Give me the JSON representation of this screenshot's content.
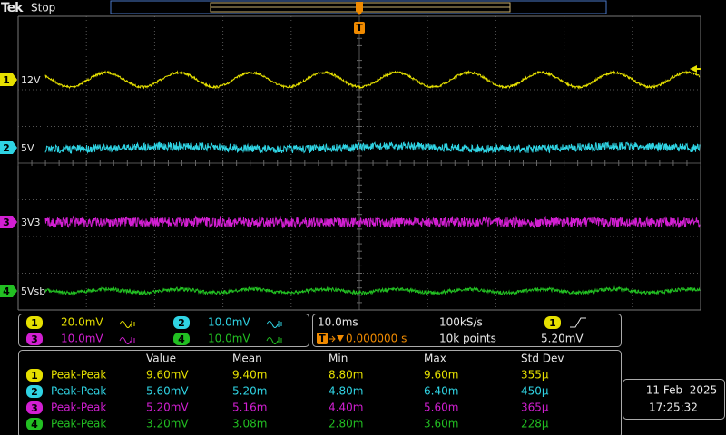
{
  "header": {
    "brand": "Tek",
    "status": "Stop"
  },
  "trigger_marker": "T",
  "channels": [
    {
      "number": "1",
      "label": "12V",
      "scale": "20.0mV",
      "color": "#e6e000"
    },
    {
      "number": "2",
      "label": "5V",
      "scale": "10.0mV",
      "color": "#2fd3e3"
    },
    {
      "number": "3",
      "label": "3V3",
      "scale": "10.0mV",
      "color": "#d21fd2"
    },
    {
      "number": "4",
      "label": "5Vsb",
      "scale": "10.0mV",
      "color": "#22bf22"
    }
  ],
  "timebase": {
    "scale": "10.0ms",
    "sample_rate": "100kS/s",
    "trigger_position": "0.000000 s",
    "record_length": "10k points",
    "trigger_source": "1",
    "trigger_level": "5.20mV"
  },
  "measurements": {
    "columns": [
      "Value",
      "Mean",
      "Min",
      "Max",
      "Std Dev"
    ],
    "rows": [
      {
        "channel": "1",
        "type": "Peak-Peak",
        "values": [
          "9.60mV",
          "9.40m",
          "8.80m",
          "9.60m",
          "355µ"
        ]
      },
      {
        "channel": "2",
        "type": "Peak-Peak",
        "values": [
          "5.60mV",
          "5.20m",
          "4.80m",
          "6.40m",
          "450µ"
        ]
      },
      {
        "channel": "3",
        "type": "Peak-Peak",
        "values": [
          "5.20mV",
          "5.16m",
          "4.40m",
          "5.60m",
          "365µ"
        ]
      },
      {
        "channel": "4",
        "type": "Peak-Peak",
        "values": [
          "3.20mV",
          "3.08m",
          "2.80m",
          "3.60m",
          "228µ"
        ]
      }
    ]
  },
  "datetime": {
    "date": "11 Feb  2025",
    "time": "17:25:32"
  }
}
